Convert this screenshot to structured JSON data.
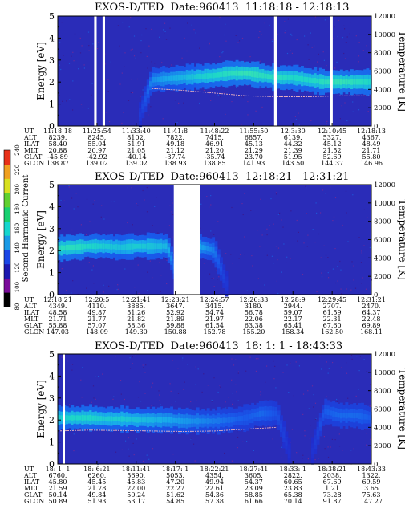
{
  "panels": [
    {
      "title": "EXOS-D/TED",
      "date": "Date:960413",
      "time_range": "11:18:18 - 12:18:13",
      "ylabel_left": "Energy [eV]",
      "ylabel_right": "Temperature [K]",
      "energy_ticks": [
        "0",
        "1",
        "2",
        "3",
        "4",
        "5"
      ],
      "temp_ticks": [
        "0",
        "2000",
        "4000",
        "6000",
        "8000",
        "10000",
        "12000"
      ],
      "row_labels": [
        "UT",
        "ALT",
        "ILAT",
        "MLT",
        "GLAT",
        "GLON"
      ],
      "columns": [
        [
          "11:18:18",
          "8239.",
          "58.40",
          "20.88",
          "-45.89",
          "138.87"
        ],
        [
          "11:25:54",
          "8245.",
          "55.04",
          "20.97",
          "-42.92",
          "139.02"
        ],
        [
          "11:33:40",
          "8102.",
          "51.91",
          "21.05",
          "-40.14",
          "139.02"
        ],
        [
          "11:41:8",
          "7822.",
          "49.18",
          "21.12",
          "-37.74",
          "138.93"
        ],
        [
          "11:48:22",
          "7415.",
          "46.91",
          "21.20",
          "-35.74",
          "138.85"
        ],
        [
          "11:55:50",
          "6857.",
          "45.13",
          "21.29",
          "23.70",
          "141.93"
        ],
        [
          "12:3:30",
          "6139.",
          "44.32",
          "21.39",
          "51.95",
          "143.50"
        ],
        [
          "12:10:45",
          "5327.",
          "45.12",
          "21.52",
          "52.69",
          "144.37"
        ],
        [
          "12:18:13",
          "4367.",
          "48.49",
          "21.71",
          "55.80",
          "146.96"
        ]
      ]
    },
    {
      "title": "EXOS-D/TED",
      "date": "Date:960413",
      "time_range": "12:18:21 - 12:31:21",
      "ylabel_left": "Energy [eV]",
      "ylabel_right": "Temperature [K]",
      "energy_ticks": [
        "0",
        "1",
        "2",
        "3",
        "4",
        "5"
      ],
      "temp_ticks": [
        "0",
        "2000",
        "4000",
        "6000",
        "8000",
        "10000",
        "12000"
      ],
      "row_labels": [
        "UT",
        "ALT",
        "ILAT",
        "MLT",
        "GLAT",
        "GLON"
      ],
      "columns": [
        [
          "12:18:21",
          "4349.",
          "48.58",
          "21.71",
          "55.88",
          "147.03"
        ],
        [
          "12:20:5",
          "4110.",
          "49.87",
          "21.77",
          "57.07",
          "148.09"
        ],
        [
          "12:21:41",
          "3885.",
          "51.26",
          "21.82",
          "58.36",
          "149.30"
        ],
        [
          "12:23:21",
          "3647.",
          "52.92",
          "21.89",
          "59.88",
          "150.88"
        ],
        [
          "12:24:57",
          "3415.",
          "54.74",
          "21.97",
          "61.54",
          "152.78"
        ],
        [
          "12:26:33",
          "3180.",
          "56.78",
          "22.06",
          "63.38",
          "155.20"
        ],
        [
          "12:28:9",
          "2944.",
          "59.07",
          "22.17",
          "65.41",
          "158.34"
        ],
        [
          "12:29:45",
          "2707.",
          "61.59",
          "22.31",
          "67.60",
          "162.50"
        ],
        [
          "12:31:21",
          "2470.",
          "64.37",
          "22.48",
          "69.89",
          "168.11"
        ]
      ]
    },
    {
      "title": "EXOS-D/TED",
      "date": "Date:960413",
      "time_range": "18: 1: 1 - 18:43:33",
      "ylabel_left": "Energy [eV]",
      "ylabel_right": "Temperature [K]",
      "energy_ticks": [
        "0",
        "1",
        "2",
        "3",
        "4",
        "5"
      ],
      "temp_ticks": [
        "0",
        "2000",
        "4000",
        "6000",
        "8000",
        "10000",
        "12000"
      ],
      "row_labels": [
        "UT",
        "ALT",
        "ILAT",
        "MLT",
        "GLAT",
        "GLON"
      ],
      "columns": [
        [
          "18: 1: 1",
          "6760.",
          "45.80",
          "21.59",
          "50.14",
          "50.89"
        ],
        [
          "18: 6:21",
          "6260.",
          "45.45",
          "21.78",
          "49.84",
          "51.93"
        ],
        [
          "18:11:41",
          "5690.",
          "45.83",
          "22.00",
          "50.24",
          "53.17"
        ],
        [
          "18:17: 1",
          "5053.",
          "47.20",
          "22.27",
          "51.62",
          "54.85"
        ],
        [
          "18:22:21",
          "4354.",
          "49.94",
          "22.61",
          "54.36",
          "57.38"
        ],
        [
          "18:27:41",
          "3605.",
          "54.37",
          "23.09",
          "58.85",
          "61.66"
        ],
        [
          "18:33: 1",
          "2822.",
          "60.65",
          "23.83",
          "65.38",
          "70.14"
        ],
        [
          "18:38:21",
          "2038.",
          "67.69",
          "1.21",
          "73.28",
          "91.87"
        ],
        [
          "18:43:33",
          "1322.",
          "69.59",
          "3.65",
          "75.63",
          "147.27"
        ]
      ]
    }
  ],
  "colorbar": {
    "label": "Second Harmonic Current",
    "ticks": [
      "80",
      "100",
      "120",
      "140",
      "160",
      "180",
      "200",
      "220",
      "240"
    ],
    "colors": [
      "#000000",
      "#7a0c9a",
      "#1c18b0",
      "#1a46e6",
      "#1a9ae6",
      "#16d6ce",
      "#18d070",
      "#60d030",
      "#d8e020",
      "#f0a020",
      "#e83018"
    ]
  },
  "chart_data": [
    {
      "type": "heatmap",
      "title": "EXOS-D/TED  Date:960413  11:18:18 - 12:18:13",
      "xlabel": "UT",
      "ylabel": "Energy [eV]",
      "ylabel_right": "Temperature [K]",
      "x_ticks": [
        "11:18:18",
        "11:25:54",
        "11:33:40",
        "11:41:8",
        "11:48:22",
        "11:55:50",
        "12:3:30",
        "12:10:45",
        "12:18:13"
      ],
      "ylim": [
        0,
        5
      ],
      "y2lim": [
        0,
        12000
      ],
      "colorbar_range": [
        80,
        240
      ],
      "band": [
        [
          0.0,
          0,
          0
        ],
        [
          0.05,
          0,
          0
        ],
        [
          0.1,
          0,
          0
        ],
        [
          0.15,
          0,
          0
        ],
        [
          0.2,
          0,
          0
        ],
        [
          0.25,
          0,
          0
        ],
        [
          0.3,
          2.1,
          0.45
        ],
        [
          0.35,
          2.15,
          0.55
        ],
        [
          0.4,
          2.2,
          0.6
        ],
        [
          0.45,
          2.25,
          0.7
        ],
        [
          0.5,
          2.3,
          0.75
        ],
        [
          0.55,
          2.4,
          0.8
        ],
        [
          0.6,
          2.4,
          0.85
        ],
        [
          0.65,
          2.3,
          0.8
        ],
        [
          0.7,
          2.2,
          0.8
        ],
        [
          0.75,
          2.2,
          0.75
        ],
        [
          0.8,
          2.1,
          0.75
        ],
        [
          0.85,
          2.0,
          0.8
        ],
        [
          0.9,
          2.0,
          0.85
        ],
        [
          0.95,
          2.0,
          0.8
        ],
        [
          1.0,
          2.0,
          0.75
        ]
      ],
      "temperature": [
        [
          0.3,
          4100
        ],
        [
          0.4,
          3900
        ],
        [
          0.5,
          3600
        ],
        [
          0.6,
          3300
        ],
        [
          0.7,
          3200
        ],
        [
          0.8,
          3200
        ],
        [
          0.9,
          3300
        ],
        [
          1.0,
          3300
        ]
      ],
      "gaps": [
        [
          0.116,
          0.124
        ],
        [
          0.143,
          0.151
        ],
        [
          0.69,
          0.699
        ],
        [
          0.868,
          0.877
        ]
      ]
    },
    {
      "type": "heatmap",
      "title": "EXOS-D/TED  Date:960413  12:18:21 - 12:31:21",
      "xlabel": "UT",
      "ylabel": "Energy [eV]",
      "ylabel_right": "Temperature [K]",
      "x_ticks": [
        "12:18:21",
        "12:20:5",
        "12:21:41",
        "12:23:21",
        "12:24:57",
        "12:26:33",
        "12:28:9",
        "12:29:45",
        "12:31:21"
      ],
      "ylim": [
        0,
        5
      ],
      "y2lim": [
        0,
        12000
      ],
      "colorbar_range": [
        80,
        240
      ],
      "band": [
        [
          0.0,
          2.1,
          0.8
        ],
        [
          0.05,
          2.15,
          0.8
        ],
        [
          0.1,
          2.2,
          0.75
        ],
        [
          0.15,
          2.2,
          0.7
        ],
        [
          0.2,
          2.15,
          0.65
        ],
        [
          0.25,
          2.2,
          0.7
        ],
        [
          0.3,
          2.2,
          0.65
        ],
        [
          0.35,
          2.2,
          0.6
        ],
        [
          0.4,
          0,
          0
        ],
        [
          0.45,
          2.2,
          0.55
        ],
        [
          0.5,
          2.0,
          0.4
        ],
        [
          0.55,
          0,
          0
        ],
        [
          0.6,
          0,
          0
        ],
        [
          0.65,
          0,
          0
        ],
        [
          0.7,
          0,
          0
        ],
        [
          0.75,
          0,
          0
        ],
        [
          0.8,
          0,
          0
        ],
        [
          0.85,
          0,
          0
        ],
        [
          0.9,
          0,
          0
        ],
        [
          0.95,
          0,
          0
        ],
        [
          1.0,
          0,
          0
        ]
      ],
      "temperature": [],
      "gaps": [
        [
          0.37,
          0.455
        ]
      ]
    },
    {
      "type": "heatmap",
      "title": "EXOS-D/TED  Date:960413  18: 1: 1 - 18:43:33",
      "xlabel": "UT",
      "ylabel": "Energy [eV]",
      "ylabel_right": "Temperature [K]",
      "x_ticks": [
        "18: 1: 1",
        "18: 6:21",
        "18:11:41",
        "18:17: 1",
        "18:22:21",
        "18:27:41",
        "18:33: 1",
        "18:38:21",
        "18:43:33"
      ],
      "ylim": [
        0,
        5
      ],
      "y2lim": [
        0,
        12000
      ],
      "colorbar_range": [
        80,
        240
      ],
      "band": [
        [
          0.0,
          2.1,
          0.7
        ],
        [
          0.05,
          2.1,
          0.75
        ],
        [
          0.1,
          2.1,
          0.75
        ],
        [
          0.15,
          2.05,
          0.7
        ],
        [
          0.2,
          2.05,
          0.7
        ],
        [
          0.25,
          2.0,
          0.65
        ],
        [
          0.3,
          2.0,
          0.6
        ],
        [
          0.35,
          2.0,
          0.55
        ],
        [
          0.4,
          1.95,
          0.5
        ],
        [
          0.45,
          1.95,
          0.45
        ],
        [
          0.5,
          1.95,
          0.4
        ],
        [
          0.55,
          2.0,
          0.35
        ],
        [
          0.6,
          2.1,
          0.3
        ],
        [
          0.65,
          2.3,
          0.35
        ],
        [
          0.7,
          2.3,
          0.25
        ],
        [
          0.75,
          0,
          0
        ],
        [
          0.8,
          0,
          0
        ],
        [
          0.85,
          2.4,
          0.3
        ],
        [
          0.9,
          2.2,
          0.35
        ],
        [
          0.95,
          2.2,
          0.35
        ],
        [
          1.0,
          2.1,
          0.3
        ]
      ],
      "temperature": [
        [
          0.0,
          3600
        ],
        [
          0.1,
          3700
        ],
        [
          0.2,
          3650
        ],
        [
          0.3,
          3600
        ],
        [
          0.4,
          3550
        ],
        [
          0.5,
          3600
        ],
        [
          0.6,
          3800
        ],
        [
          0.7,
          4000
        ]
      ],
      "gaps": [
        [
          0.018,
          0.023
        ]
      ]
    }
  ]
}
